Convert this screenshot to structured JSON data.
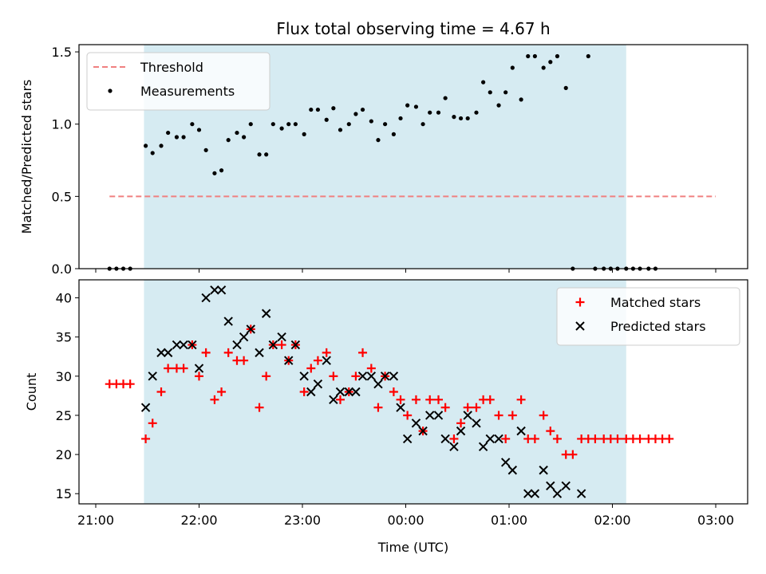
{
  "chart_data": [
    {
      "type": "scatter",
      "title": "Flux total observing time = 4.67 h",
      "xlabel": "",
      "ylabel": "Matched/Predicted stars",
      "ylim": [
        0,
        1.55
      ],
      "yticks": [
        "0.0",
        "0.5",
        "1.0",
        "1.5"
      ],
      "x_is_time": true,
      "legend_placement": "top-left",
      "shaded_interval": [
        "21:28",
        "02:08"
      ],
      "shaded_color": "#add8e6",
      "threshold": {
        "name": "Threshold",
        "value": 0.5,
        "x_range": [
          "21:08",
          "03:00"
        ],
        "color": "#f08080"
      },
      "series": [
        {
          "name": "Measurements",
          "color": "#000000",
          "marker": "dot",
          "points": [
            [
              "21:08",
              0.0
            ],
            [
              "21:12",
              0.0
            ],
            [
              "21:16",
              0.0
            ],
            [
              "21:20",
              0.0
            ],
            [
              "21:29",
              0.85
            ],
            [
              "21:33",
              0.8
            ],
            [
              "21:38",
              0.85
            ],
            [
              "21:42",
              0.94
            ],
            [
              "21:47",
              0.91
            ],
            [
              "21:51",
              0.91
            ],
            [
              "21:56",
              1.0
            ],
            [
              "22:00",
              0.96
            ],
            [
              "22:04",
              0.82
            ],
            [
              "22:09",
              0.66
            ],
            [
              "22:13",
              0.68
            ],
            [
              "22:17",
              0.89
            ],
            [
              "22:22",
              0.94
            ],
            [
              "22:26",
              0.91
            ],
            [
              "22:30",
              1.0
            ],
            [
              "22:35",
              0.79
            ],
            [
              "22:39",
              0.79
            ],
            [
              "22:43",
              1.0
            ],
            [
              "22:48",
              0.97
            ],
            [
              "22:52",
              1.0
            ],
            [
              "22:56",
              1.0
            ],
            [
              "23:01",
              0.93
            ],
            [
              "23:05",
              1.1
            ],
            [
              "23:09",
              1.1
            ],
            [
              "23:14",
              1.03
            ],
            [
              "23:18",
              1.11
            ],
            [
              "23:22",
              0.96
            ],
            [
              "23:27",
              1.0
            ],
            [
              "23:31",
              1.07
            ],
            [
              "23:35",
              1.1
            ],
            [
              "23:40",
              1.02
            ],
            [
              "23:44",
              0.89
            ],
            [
              "23:48",
              1.0
            ],
            [
              "23:53",
              0.93
            ],
            [
              "23:57",
              1.04
            ],
            [
              "00:01",
              1.13
            ],
            [
              "00:06",
              1.12
            ],
            [
              "00:10",
              1.0
            ],
            [
              "00:14",
              1.08
            ],
            [
              "00:19",
              1.08
            ],
            [
              "00:23",
              1.18
            ],
            [
              "00:28",
              1.05
            ],
            [
              "00:32",
              1.04
            ],
            [
              "00:36",
              1.04
            ],
            [
              "00:41",
              1.08
            ],
            [
              "00:45",
              1.29
            ],
            [
              "00:49",
              1.22
            ],
            [
              "00:54",
              1.13
            ],
            [
              "00:58",
              1.22
            ],
            [
              "01:02",
              1.39
            ],
            [
              "01:07",
              1.17
            ],
            [
              "01:11",
              1.47
            ],
            [
              "01:15",
              1.47
            ],
            [
              "01:20",
              1.39
            ],
            [
              "01:24",
              1.43
            ],
            [
              "01:28",
              1.47
            ],
            [
              "01:33",
              1.25
            ],
            [
              "01:37",
              0.0
            ],
            [
              "01:46",
              1.47
            ],
            [
              "01:50",
              0.0
            ],
            [
              "01:55",
              0.0
            ],
            [
              "01:59",
              0.0
            ],
            [
              "02:03",
              0.0
            ],
            [
              "02:08",
              0.0
            ],
            [
              "02:12",
              0.0
            ],
            [
              "02:16",
              0.0
            ],
            [
              "02:21",
              0.0
            ],
            [
              "02:25",
              0.0
            ]
          ]
        }
      ]
    },
    {
      "type": "scatter",
      "title": "",
      "xlabel": "Time (UTC)",
      "ylabel": "Count",
      "ylim": [
        13.7,
        42.3
      ],
      "yticks": [
        "15",
        "20",
        "25",
        "30",
        "35",
        "40"
      ],
      "xticks": [
        "21:00",
        "22:00",
        "23:00",
        "00:00",
        "01:00",
        "02:00",
        "03:00"
      ],
      "x_is_time": true,
      "legend_placement": "top-right",
      "shaded_interval": [
        "21:28",
        "02:08"
      ],
      "series": [
        {
          "name": "Matched stars",
          "color": "#ff0000",
          "marker": "plus",
          "points": [
            [
              "21:08",
              29
            ],
            [
              "21:12",
              29
            ],
            [
              "21:16",
              29
            ],
            [
              "21:20",
              29
            ],
            [
              "21:29",
              22
            ],
            [
              "21:33",
              24
            ],
            [
              "21:38",
              28
            ],
            [
              "21:42",
              31
            ],
            [
              "21:47",
              31
            ],
            [
              "21:51",
              31
            ],
            [
              "21:56",
              34
            ],
            [
              "22:00",
              30
            ],
            [
              "22:04",
              33
            ],
            [
              "22:09",
              27
            ],
            [
              "22:13",
              28
            ],
            [
              "22:17",
              33
            ],
            [
              "22:22",
              32
            ],
            [
              "22:26",
              32
            ],
            [
              "22:30",
              36
            ],
            [
              "22:35",
              26
            ],
            [
              "22:39",
              30
            ],
            [
              "22:43",
              34
            ],
            [
              "22:48",
              34
            ],
            [
              "22:52",
              32
            ],
            [
              "22:56",
              34
            ],
            [
              "23:01",
              28
            ],
            [
              "23:05",
              31
            ],
            [
              "23:09",
              32
            ],
            [
              "23:14",
              33
            ],
            [
              "23:18",
              30
            ],
            [
              "23:22",
              27
            ],
            [
              "23:27",
              28
            ],
            [
              "23:31",
              30
            ],
            [
              "23:35",
              33
            ],
            [
              "23:40",
              31
            ],
            [
              "23:44",
              26
            ],
            [
              "23:48",
              30
            ],
            [
              "23:53",
              28
            ],
            [
              "23:57",
              27
            ],
            [
              "00:01",
              25
            ],
            [
              "00:06",
              27
            ],
            [
              "00:10",
              23
            ],
            [
              "00:14",
              27
            ],
            [
              "00:19",
              27
            ],
            [
              "00:23",
              26
            ],
            [
              "00:28",
              22
            ],
            [
              "00:32",
              24
            ],
            [
              "00:36",
              26
            ],
            [
              "00:41",
              26
            ],
            [
              "00:45",
              27
            ],
            [
              "00:49",
              27
            ],
            [
              "00:54",
              25
            ],
            [
              "00:58",
              22
            ],
            [
              "01:02",
              25
            ],
            [
              "01:07",
              27
            ],
            [
              "01:11",
              22
            ],
            [
              "01:15",
              22
            ],
            [
              "01:20",
              25
            ],
            [
              "01:24",
              23
            ],
            [
              "01:28",
              22
            ],
            [
              "01:33",
              20
            ],
            [
              "01:37",
              20
            ],
            [
              "01:42",
              22
            ],
            [
              "01:46",
              22
            ],
            [
              "01:50",
              22
            ],
            [
              "01:55",
              22
            ],
            [
              "01:59",
              22
            ],
            [
              "02:03",
              22
            ],
            [
              "02:08",
              22
            ],
            [
              "02:12",
              22
            ],
            [
              "02:16",
              22
            ],
            [
              "02:21",
              22
            ],
            [
              "02:25",
              22
            ],
            [
              "02:29",
              22
            ],
            [
              "02:33",
              22
            ]
          ]
        },
        {
          "name": "Predicted stars",
          "color": "#000000",
          "marker": "x",
          "points": [
            [
              "21:29",
              26
            ],
            [
              "21:33",
              30
            ],
            [
              "21:38",
              33
            ],
            [
              "21:42",
              33
            ],
            [
              "21:47",
              34
            ],
            [
              "21:51",
              34
            ],
            [
              "21:56",
              34
            ],
            [
              "22:00",
              31
            ],
            [
              "22:04",
              40
            ],
            [
              "22:09",
              41
            ],
            [
              "22:13",
              41
            ],
            [
              "22:17",
              37
            ],
            [
              "22:22",
              34
            ],
            [
              "22:26",
              35
            ],
            [
              "22:30",
              36
            ],
            [
              "22:35",
              33
            ],
            [
              "22:39",
              38
            ],
            [
              "22:43",
              34
            ],
            [
              "22:48",
              35
            ],
            [
              "22:52",
              32
            ],
            [
              "22:56",
              34
            ],
            [
              "23:01",
              30
            ],
            [
              "23:05",
              28
            ],
            [
              "23:09",
              29
            ],
            [
              "23:14",
              32
            ],
            [
              "23:18",
              27
            ],
            [
              "23:22",
              28
            ],
            [
              "23:27",
              28
            ],
            [
              "23:31",
              28
            ],
            [
              "23:35",
              30
            ],
            [
              "23:40",
              30
            ],
            [
              "23:44",
              29
            ],
            [
              "23:48",
              30
            ],
            [
              "23:53",
              30
            ],
            [
              "23:57",
              26
            ],
            [
              "00:01",
              22
            ],
            [
              "00:06",
              24
            ],
            [
              "00:10",
              23
            ],
            [
              "00:14",
              25
            ],
            [
              "00:19",
              25
            ],
            [
              "00:23",
              22
            ],
            [
              "00:28",
              21
            ],
            [
              "00:32",
              23
            ],
            [
              "00:36",
              25
            ],
            [
              "00:41",
              24
            ],
            [
              "00:45",
              21
            ],
            [
              "00:49",
              22
            ],
            [
              "00:54",
              22
            ],
            [
              "00:58",
              19
            ],
            [
              "01:02",
              18
            ],
            [
              "01:07",
              23
            ],
            [
              "01:11",
              15
            ],
            [
              "01:15",
              15
            ],
            [
              "01:20",
              18
            ],
            [
              "01:24",
              16
            ],
            [
              "01:28",
              15
            ],
            [
              "01:33",
              16
            ],
            [
              "01:42",
              15
            ]
          ]
        }
      ]
    }
  ]
}
